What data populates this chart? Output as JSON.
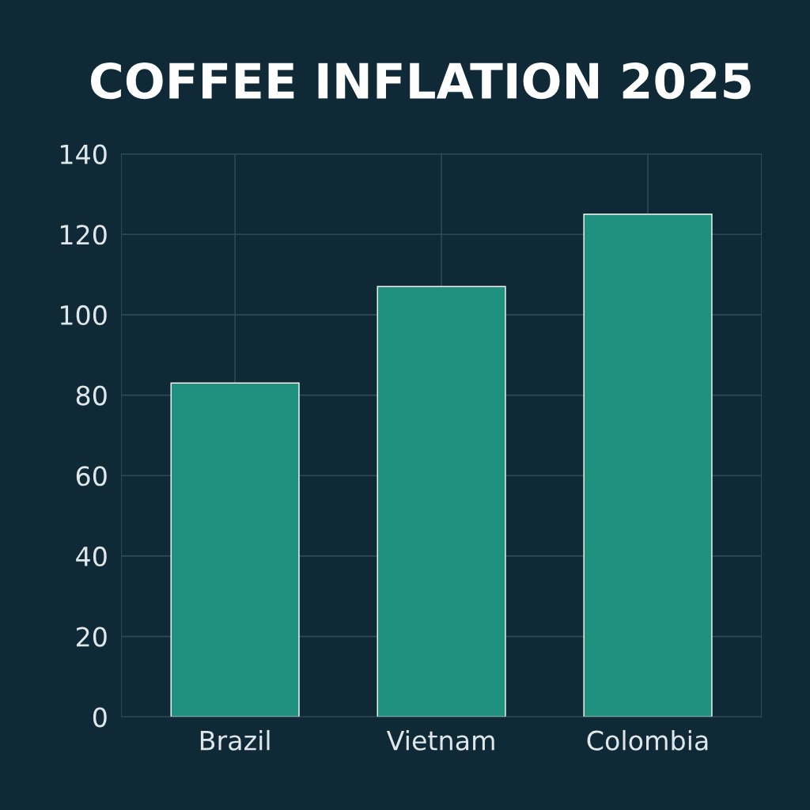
{
  "chart_data": {
    "type": "bar",
    "title": "COFFEE INFLATION 2025",
    "categories": [
      "Brazil",
      "Vietnam",
      "Colombia"
    ],
    "values": [
      83,
      107,
      125
    ],
    "color": "#21917f",
    "ylim": [
      0,
      140
    ],
    "yticks": [
      0,
      20,
      40,
      60,
      80,
      100,
      120,
      140
    ],
    "grid": true
  }
}
